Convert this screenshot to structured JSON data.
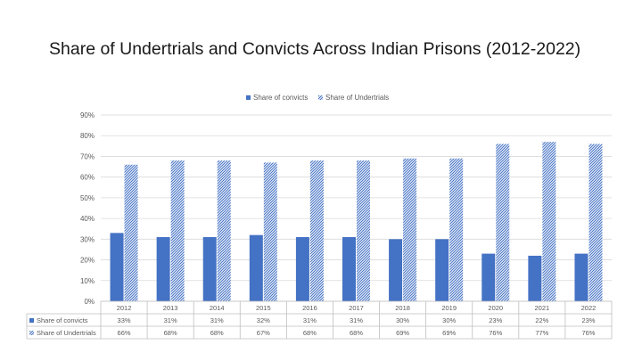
{
  "title": "Share of Undertrials and Convicts Across Indian Prisons (2012-2022)",
  "colors": {
    "convicts": "#4472c4",
    "undertrials": "#4472c4",
    "grid": "#d9d9d9",
    "text": "#595959"
  },
  "chart_data": {
    "type": "bar",
    "title": "Share of Undertrials and Convicts Across Indian Prisons (2012-2022)",
    "categories": [
      "2012",
      "2013",
      "2014",
      "2015",
      "2016",
      "2017",
      "2018",
      "2019",
      "2020",
      "2021",
      "2022"
    ],
    "series": [
      {
        "name": "Share of convicts",
        "pattern": "solid",
        "values": [
          33,
          31,
          31,
          32,
          31,
          31,
          30,
          30,
          23,
          22,
          23
        ],
        "labels": [
          "33%",
          "31%",
          "31%",
          "32%",
          "31%",
          "31%",
          "30%",
          "30%",
          "23%",
          "22%",
          "23%"
        ]
      },
      {
        "name": "Share of Undertrials",
        "pattern": "diagonal-hatch",
        "values": [
          66,
          68,
          68,
          67,
          68,
          68,
          69,
          69,
          76,
          77,
          76
        ],
        "labels": [
          "66%",
          "68%",
          "68%",
          "67%",
          "68%",
          "68%",
          "69%",
          "69%",
          "76%",
          "77%",
          "76%"
        ]
      }
    ],
    "ylim": [
      0,
      90
    ],
    "yticks": [
      0,
      10,
      20,
      30,
      40,
      50,
      60,
      70,
      80,
      90
    ],
    "ytick_labels": [
      "0%",
      "10%",
      "20%",
      "30%",
      "40%",
      "50%",
      "60%",
      "70%",
      "80%",
      "90%"
    ],
    "grid": true,
    "legend": "top-center",
    "data_table": true
  }
}
